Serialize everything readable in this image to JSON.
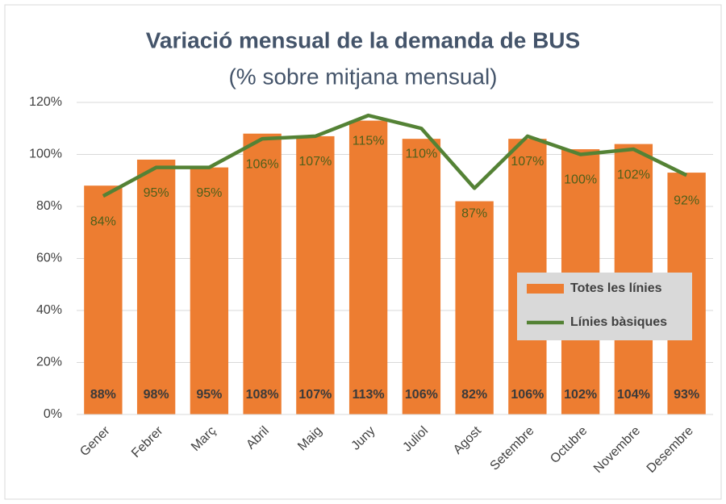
{
  "chart_data": {
    "type": "bar-line",
    "title": "Variació mensual de la demanda de BUS",
    "subtitle": "(% sobre mitjana mensual)",
    "categories": [
      "Gener",
      "Febrer",
      "Març",
      "Abril",
      "Maig",
      "Juny",
      "Juliol",
      "Agost",
      "Setembre",
      "Octubre",
      "Novembre",
      "Desembre"
    ],
    "series": [
      {
        "name": "Totes les línies",
        "type": "bar",
        "color": "#ed7d31",
        "values": [
          88,
          98,
          95,
          108,
          107,
          113,
          106,
          82,
          106,
          102,
          104,
          93
        ],
        "value_labels": [
          "88%",
          "98%",
          "95%",
          "108%",
          "107%",
          "113%",
          "106%",
          "82%",
          "106%",
          "102%",
          "104%",
          "93%"
        ]
      },
      {
        "name": "Línies bàsiques",
        "type": "line",
        "color": "#548235",
        "values": [
          84,
          95,
          95,
          106,
          107,
          115,
          110,
          87,
          107,
          100,
          102,
          92
        ],
        "value_labels": [
          "84%",
          "95%",
          "95%",
          "106%",
          "107%",
          "115%",
          "110%",
          "87%",
          "107%",
          "100%",
          "102%",
          "92%"
        ]
      }
    ],
    "ylim": [
      0,
      120
    ],
    "yticks": [
      {
        "value": 0,
        "label": "0%"
      },
      {
        "value": 20,
        "label": "20%"
      },
      {
        "value": 40,
        "label": "40%"
      },
      {
        "value": 60,
        "label": "60%"
      },
      {
        "value": 80,
        "label": "80%"
      },
      {
        "value": 100,
        "label": "100%"
      },
      {
        "value": 120,
        "label": "120%"
      }
    ],
    "grid": true
  }
}
